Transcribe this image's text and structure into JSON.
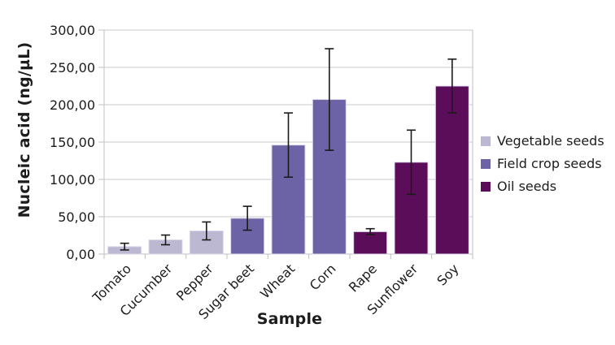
{
  "chart_data": {
    "type": "bar",
    "title": "",
    "xlabel": "Sample",
    "ylabel": "Nucleic acid (ng/µL)",
    "ylim": [
      0,
      300
    ],
    "grid": true,
    "legend_position": "right",
    "decimal_style": "comma",
    "yticks": [
      {
        "value": 0,
        "label": "0,00"
      },
      {
        "value": 50,
        "label": "50,00"
      },
      {
        "value": 100,
        "label": "100,00"
      },
      {
        "value": 150,
        "label": "150,00"
      },
      {
        "value": 200,
        "label": "200,00"
      },
      {
        "value": 250,
        "label": "250,00"
      },
      {
        "value": 300,
        "label": "300,00"
      }
    ],
    "categories": [
      "Tomato",
      "Cucumber",
      "Pepper",
      "Sugar beet",
      "Wheat",
      "Corn",
      "Rape",
      "Sunflower",
      "Soy"
    ],
    "values": [
      10,
      19,
      31,
      48,
      146,
      207,
      30,
      123,
      225
    ],
    "error_bars": [
      4.5,
      6.5,
      12,
      16,
      43,
      68,
      4,
      43,
      36
    ],
    "group_index": [
      0,
      0,
      0,
      1,
      1,
      1,
      2,
      2,
      2
    ],
    "groups": [
      {
        "label": "Vegetable seeds",
        "color": "#bdb8d2"
      },
      {
        "label": "Field crop seeds",
        "color": "#6c63a6"
      },
      {
        "label": "Oil seeds",
        "color": "#5c0d59"
      }
    ],
    "colors": {
      "gridline": "#c9c9c9",
      "axis_line": "#bfbfbf",
      "error_bar": "#1a1a1a",
      "text": "#1c1c1c",
      "bar_outline": "#dcd8ea",
      "background": "#ffffff"
    }
  }
}
